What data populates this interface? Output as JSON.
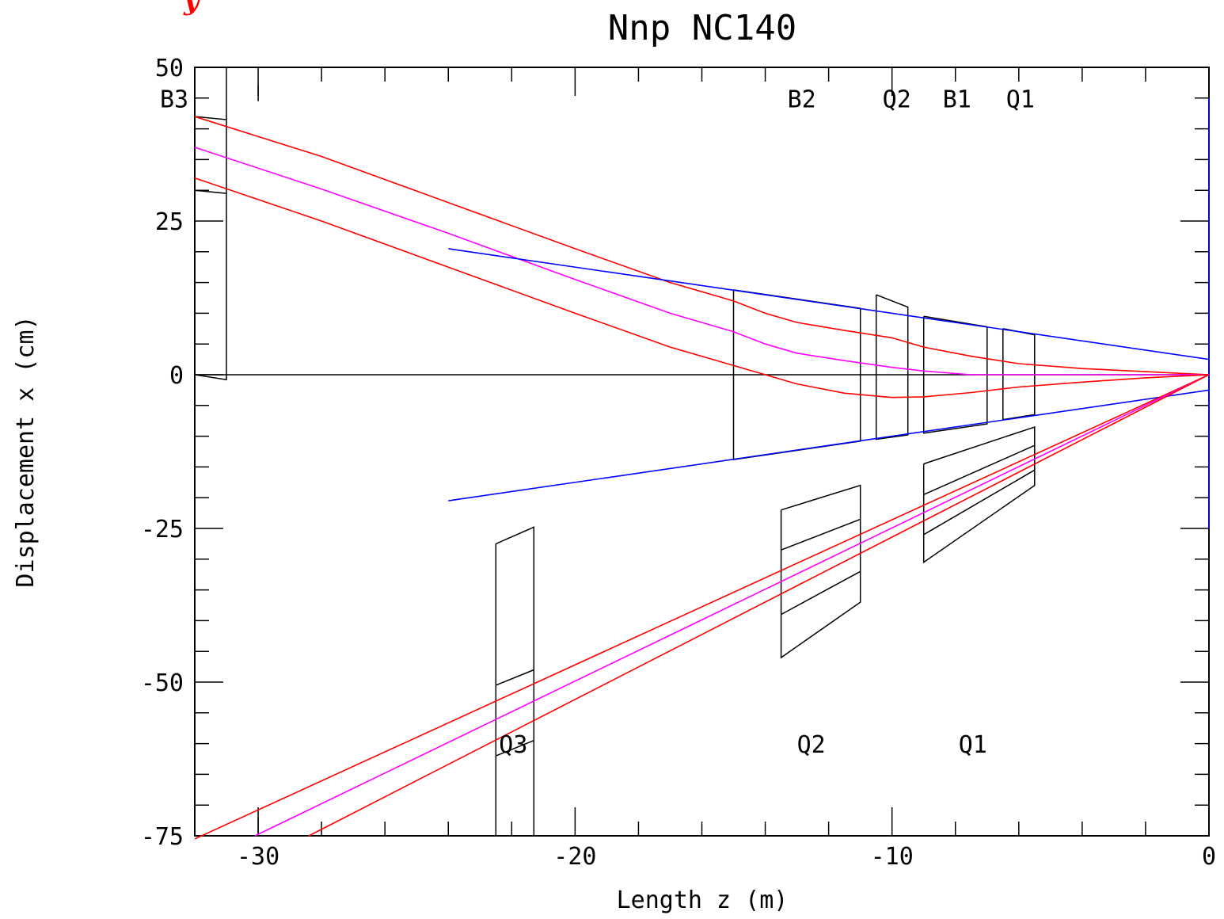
{
  "chart_data": {
    "type": "line",
    "title": "Nnp NC140",
    "corner_mark": "y",
    "xlabel": "Length z (m)",
    "ylabel": "Displacement x (cm)",
    "xlim": [
      -32,
      0
    ],
    "ylim": [
      -75,
      50
    ],
    "x_ticks": [
      {
        "value": -30,
        "label": "-30"
      },
      {
        "value": -20,
        "label": "-20"
      },
      {
        "value": -10,
        "label": "-10"
      },
      {
        "value": 0,
        "label": "0"
      }
    ],
    "y_ticks": [
      {
        "value": 50,
        "label": "50"
      },
      {
        "value": 25,
        "label": "25"
      },
      {
        "value": 0,
        "label": "0"
      },
      {
        "value": -25,
        "label": "-25"
      },
      {
        "value": -50,
        "label": "-50"
      },
      {
        "value": -75,
        "label": "-75"
      }
    ],
    "element_labels": [
      {
        "text": "B3",
        "z": -33.1,
        "x": 43.5
      },
      {
        "text": "B2",
        "z": -13.3,
        "x": 43.5
      },
      {
        "text": "Q2",
        "z": -10.3,
        "x": 43.5
      },
      {
        "text": "B1",
        "z": -8.4,
        "x": 43.5
      },
      {
        "text": "Q1",
        "z": -6.4,
        "x": 43.5
      },
      {
        "text": "Q3",
        "z": -22.4,
        "x": -61.5
      },
      {
        "text": "Q2",
        "z": -13.0,
        "x": -61.5
      },
      {
        "text": "Q1",
        "z": -7.9,
        "x": -61.5
      }
    ],
    "series": [
      {
        "color": "#ff0000",
        "points": [
          [
            -32,
            42
          ],
          [
            -28,
            35.5
          ],
          [
            -24,
            28
          ],
          [
            -20,
            20.5
          ],
          [
            -17,
            15
          ],
          [
            -15,
            12
          ],
          [
            -14,
            10
          ],
          [
            -13,
            8.5
          ],
          [
            -11.5,
            7.2
          ],
          [
            -10,
            6
          ],
          [
            -9,
            4.5
          ],
          [
            -7.5,
            3
          ],
          [
            -6,
            1.8
          ],
          [
            -4,
            1
          ],
          [
            -2,
            0.5
          ],
          [
            0,
            0
          ]
        ]
      },
      {
        "color": "#ff00ff",
        "points": [
          [
            -32,
            37
          ],
          [
            -28,
            30.2
          ],
          [
            -24,
            23
          ],
          [
            -20,
            15.5
          ],
          [
            -17,
            10
          ],
          [
            -15,
            7
          ],
          [
            -14,
            5
          ],
          [
            -13,
            3.5
          ],
          [
            -11.5,
            2.3
          ],
          [
            -10,
            1.2
          ],
          [
            -9,
            0.6
          ],
          [
            -7.5,
            0
          ],
          [
            -6,
            0
          ],
          [
            -4,
            0
          ],
          [
            -2,
            0
          ],
          [
            0,
            0
          ]
        ]
      },
      {
        "color": "#ff0000",
        "points": [
          [
            -32,
            32
          ],
          [
            -28,
            25
          ],
          [
            -24,
            17.5
          ],
          [
            -20,
            10
          ],
          [
            -17,
            4.5
          ],
          [
            -15,
            1.5
          ],
          [
            -14,
            0
          ],
          [
            -13,
            -1.5
          ],
          [
            -11.5,
            -3
          ],
          [
            -10,
            -3.7
          ],
          [
            -9,
            -3.6
          ],
          [
            -7.5,
            -2.9
          ],
          [
            -6,
            -2
          ],
          [
            -4,
            -1.2
          ],
          [
            -2,
            -0.5
          ],
          [
            0,
            0
          ]
        ]
      },
      {
        "color": "#0000ff",
        "points": [
          [
            -24,
            20.5
          ],
          [
            0,
            2.5
          ]
        ]
      },
      {
        "color": "#0000ff",
        "points": [
          [
            -24,
            -20.5
          ],
          [
            0,
            -2.5
          ]
        ]
      },
      {
        "color": "#0000ff",
        "points": [
          [
            0,
            45
          ],
          [
            0,
            -25
          ]
        ]
      },
      {
        "color": "#ff0000",
        "points": [
          [
            -32,
            -75.5
          ],
          [
            0,
            0
          ]
        ]
      },
      {
        "color": "#ff00ff",
        "points": [
          [
            -30.1,
            -75
          ],
          [
            0,
            0
          ]
        ]
      },
      {
        "color": "#ff0000",
        "points": [
          [
            -28.4,
            -75
          ],
          [
            0,
            0
          ]
        ]
      }
    ],
    "elements": [
      {
        "name": "B3",
        "points": [
          [
            -32,
            42
          ],
          [
            -31,
            41.5
          ],
          [
            -31,
            -0.8
          ],
          [
            -32,
            0
          ]
        ]
      },
      {
        "name": "B3-inner",
        "points": [
          [
            -32,
            30
          ],
          [
            -31,
            29.5
          ]
        ]
      },
      {
        "name": "B3-top",
        "points": [
          [
            -31,
            41.5
          ],
          [
            -31,
            50
          ]
        ]
      },
      {
        "name": "B2",
        "points": [
          [
            -15,
            13.8
          ],
          [
            -11,
            10.8
          ],
          [
            -11,
            -10.8
          ],
          [
            -15,
            -13.8
          ],
          [
            -15,
            13.8
          ]
        ]
      },
      {
        "name": "Q2",
        "points": [
          [
            -10.5,
            13
          ],
          [
            -9.5,
            11
          ],
          [
            -9.5,
            -9.8
          ],
          [
            -10.5,
            -10.5
          ],
          [
            -10.5,
            13
          ]
        ]
      },
      {
        "name": "B1",
        "points": [
          [
            -9,
            9.5
          ],
          [
            -7,
            7.8
          ],
          [
            -7,
            -8
          ],
          [
            -9,
            -9.5
          ],
          [
            -9,
            9.5
          ]
        ]
      },
      {
        "name": "Q1",
        "points": [
          [
            -6.5,
            7.5
          ],
          [
            -5.5,
            6.5
          ],
          [
            -5.5,
            -6.5
          ],
          [
            -6.5,
            -7.3
          ],
          [
            -6.5,
            7.5
          ]
        ]
      },
      {
        "name": "Q3-lower",
        "points": [
          [
            -22.5,
            -27.5
          ],
          [
            -21.3,
            -24.8
          ],
          [
            -21.3,
            -75
          ],
          [
            -22.5,
            -75
          ],
          [
            -22.5,
            -27.5
          ]
        ]
      },
      {
        "name": "Q3-line-1",
        "points": [
          [
            -22.5,
            -50.5
          ],
          [
            -21.3,
            -48
          ]
        ]
      },
      {
        "name": "Q3-line-2",
        "points": [
          [
            -22.5,
            -62
          ],
          [
            -21.3,
            -59.5
          ]
        ]
      },
      {
        "name": "Q2-lower",
        "points": [
          [
            -13.5,
            -22
          ],
          [
            -11,
            -18
          ],
          [
            -11,
            -37
          ],
          [
            -13.5,
            -46
          ],
          [
            -13.5,
            -22
          ]
        ]
      },
      {
        "name": "Q2-line-1",
        "points": [
          [
            -13.5,
            -28.5
          ],
          [
            -11,
            -23.5
          ]
        ]
      },
      {
        "name": "Q2-line-2",
        "points": [
          [
            -13.5,
            -39
          ],
          [
            -11,
            -32
          ]
        ]
      },
      {
        "name": "Q1-lower",
        "points": [
          [
            -9,
            -14.5
          ],
          [
            -5.5,
            -8.5
          ],
          [
            -5.5,
            -18
          ],
          [
            -9,
            -30.5
          ],
          [
            -9,
            -14.5
          ]
        ]
      },
      {
        "name": "Q1-line-1",
        "points": [
          [
            -9,
            -19.5
          ],
          [
            -5.5,
            -11.5
          ]
        ]
      },
      {
        "name": "Q1-line-2",
        "points": [
          [
            -9,
            -26
          ],
          [
            -5.5,
            -15.5
          ]
        ]
      },
      {
        "name": "axis-zero",
        "points": [
          [
            -32,
            0
          ],
          [
            0,
            0
          ]
        ]
      },
      {
        "name": "tick-stub-top",
        "points": [
          [
            -30,
            47
          ],
          [
            -30,
            44.5
          ]
        ]
      },
      {
        "name": "tick-stub-bottom",
        "points": [
          [
            -30,
            -72
          ],
          [
            -30,
            -75
          ]
        ]
      }
    ]
  }
}
